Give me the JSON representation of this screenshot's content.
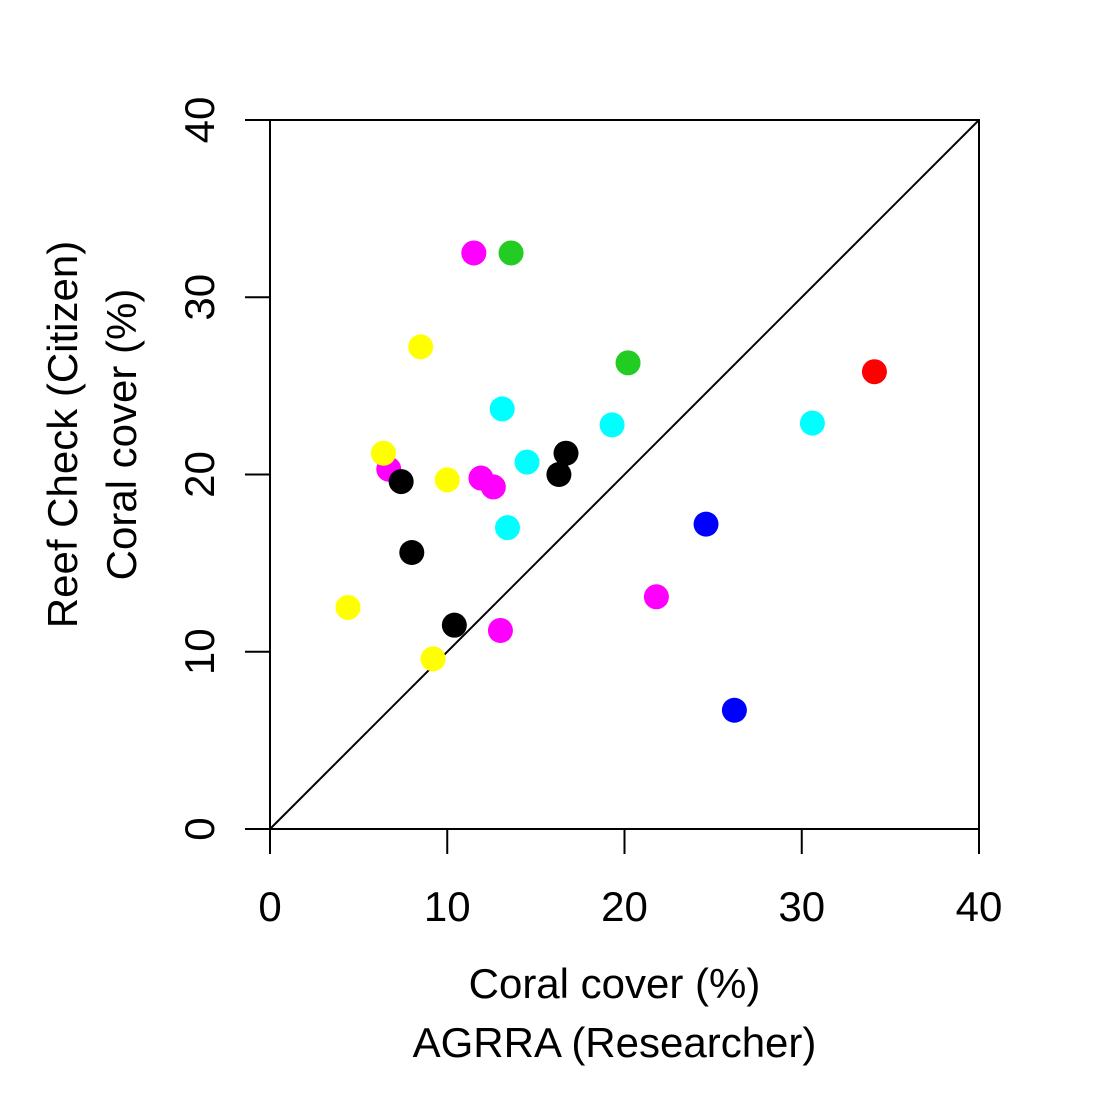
{
  "chart_data": {
    "type": "scatter",
    "title": "",
    "xlabel": [
      "Coral cover (%)",
      "AGRRA (Researcher)"
    ],
    "ylabel": [
      "Reef Check (Citizen)",
      "Coral cover (%)"
    ],
    "xlim": [
      0,
      40
    ],
    "ylim": [
      0,
      40
    ],
    "xticks": [
      0,
      10,
      20,
      30,
      40
    ],
    "yticks": [
      0,
      10,
      20,
      30,
      40
    ],
    "grid": false,
    "legend": "none",
    "reference_line": {
      "type": "identity",
      "from": [
        0,
        0
      ],
      "to": [
        40,
        40
      ],
      "color": "#000000"
    },
    "points": [
      {
        "x": 11.5,
        "y": 32.5,
        "color": "#ff00ff"
      },
      {
        "x": 13.6,
        "y": 32.5,
        "color": "#22cc22"
      },
      {
        "x": 8.5,
        "y": 27.2,
        "color": "#ffff00"
      },
      {
        "x": 20.2,
        "y": 26.3,
        "color": "#22cc22"
      },
      {
        "x": 34.1,
        "y": 25.8,
        "color": "#ff0000"
      },
      {
        "x": 13.1,
        "y": 23.7,
        "color": "#00ffff"
      },
      {
        "x": 19.3,
        "y": 22.8,
        "color": "#00ffff"
      },
      {
        "x": 30.6,
        "y": 22.9,
        "color": "#00ffff"
      },
      {
        "x": 6.7,
        "y": 20.3,
        "color": "#ff00ff"
      },
      {
        "x": 6.4,
        "y": 21.2,
        "color": "#ffff00"
      },
      {
        "x": 16.7,
        "y": 21.2,
        "color": "#000000"
      },
      {
        "x": 14.5,
        "y": 20.7,
        "color": "#00ffff"
      },
      {
        "x": 10.0,
        "y": 19.7,
        "color": "#ffff00"
      },
      {
        "x": 11.9,
        "y": 19.8,
        "color": "#ff00ff"
      },
      {
        "x": 12.6,
        "y": 19.3,
        "color": "#ff00ff"
      },
      {
        "x": 7.4,
        "y": 19.6,
        "color": "#000000"
      },
      {
        "x": 16.3,
        "y": 20.0,
        "color": "#000000"
      },
      {
        "x": 13.4,
        "y": 17.0,
        "color": "#00ffff"
      },
      {
        "x": 24.6,
        "y": 17.2,
        "color": "#0000ff"
      },
      {
        "x": 8.0,
        "y": 15.6,
        "color": "#000000"
      },
      {
        "x": 21.8,
        "y": 13.1,
        "color": "#ff00ff"
      },
      {
        "x": 4.4,
        "y": 12.5,
        "color": "#ffff00"
      },
      {
        "x": 10.4,
        "y": 11.5,
        "color": "#000000"
      },
      {
        "x": 13.0,
        "y": 11.2,
        "color": "#ff00ff"
      },
      {
        "x": 9.2,
        "y": 9.6,
        "color": "#ffff00"
      },
      {
        "x": 26.2,
        "y": 6.7,
        "color": "#0000ff"
      }
    ]
  }
}
